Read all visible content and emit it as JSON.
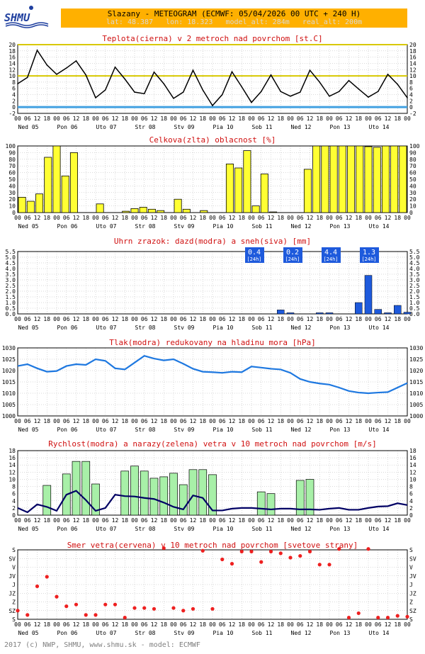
{
  "header": {
    "logo_text": "SHMU",
    "title": "Slazany - METEOGRAM (ECMWF: 05/04/2026 00 UTC + 240 H)",
    "subtitle": "lat: 48.387   lon: 18.323   model_alt: 284m   real_alt: 200m"
  },
  "footer": {
    "text": "2017 (c) NWP, SHMU, www.shmu.sk - model: ECMWF"
  },
  "time_axis": {
    "hour_labels": [
      "00",
      "06",
      "12",
      "18",
      "00",
      "06",
      "12",
      "18",
      "00",
      "06",
      "12",
      "18",
      "00",
      "06",
      "12",
      "18",
      "00",
      "06",
      "12",
      "18",
      "00",
      "06",
      "12",
      "18",
      "00",
      "06",
      "12",
      "18",
      "00",
      "06",
      "12",
      "18",
      "00",
      "06",
      "12",
      "18",
      "00",
      "06",
      "12",
      "18",
      "00"
    ],
    "day_labels": [
      "Ned 05",
      "Pon 06",
      "Uto 07",
      "Str 08",
      "Stv 09",
      "Pia 10",
      "Sob 11",
      "Ned 12",
      "Pon 13",
      "Uto 14"
    ]
  },
  "colors": {
    "yellow": "#ffff33",
    "yellow_line": "#d8c800",
    "blue_line": "#1e78e0",
    "precip_bar": "#1e5adc",
    "wind_bar": "#a8f0a8",
    "wind_line": "#000064",
    "direction_dot": "#ee2020",
    "title_red": "#d01010",
    "freezing_line": "#40a0e0"
  },
  "chart_data": [
    {
      "type": "line",
      "title": "Teplota(cierna) v 2 metroch nad povrchom [st.C]",
      "ylim": [
        -2,
        20
      ],
      "yticks": [
        "-2",
        "0",
        "2",
        "4",
        "6",
        "8",
        "10",
        "12",
        "14",
        "16",
        "18",
        "20"
      ],
      "reference_lines": [
        20,
        10,
        0
      ],
      "series": [
        {
          "values": [
            7.5,
            9.5,
            18.2,
            13.5,
            10.5,
            12.5,
            14.8,
            10.3,
            3.0,
            5.5,
            12.8,
            9.0,
            4.8,
            4.3,
            11.2,
            7.5,
            2.8,
            4.8,
            11.8,
            5.5,
            0.5,
            4.0,
            11.3,
            6.5,
            1.5,
            5.0,
            10.3,
            5.0,
            3.5,
            4.8,
            11.8,
            8.0,
            3.5,
            5.0,
            8.5,
            5.8,
            3.2,
            5.0,
            10.5,
            7.3,
            3.0
          ]
        }
      ]
    },
    {
      "type": "bar",
      "title": "Celkova(zlta) oblacnost [%]",
      "ylim": [
        0,
        100
      ],
      "yticks": [
        "0",
        "10",
        "20",
        "30",
        "40",
        "50",
        "60",
        "70",
        "80",
        "90",
        "100"
      ],
      "values": [
        23,
        17,
        28,
        83,
        100,
        55,
        90,
        0,
        0,
        13,
        0,
        0,
        2,
        6,
        8,
        5,
        3,
        0,
        20,
        5,
        0,
        3,
        0,
        0,
        73,
        67,
        93,
        10,
        58,
        1,
        0,
        0,
        0,
        65,
        100,
        100,
        100,
        100,
        100,
        100,
        99,
        98,
        100,
        100,
        100
      ]
    },
    {
      "type": "bar",
      "title": "Uhrn zrazok: dazd(modra) a sneh(siva) [mm]",
      "ylim": [
        0,
        5.5
      ],
      "yticks": [
        "0.0",
        "0.5",
        "1.0",
        "1.5",
        "2.0",
        "2.5",
        "3.0",
        "3.5",
        "4.0",
        "4.5",
        "5.0",
        "5.5"
      ],
      "values": [
        0,
        0,
        0,
        0,
        0,
        0,
        0,
        0,
        0,
        0,
        0,
        0,
        0,
        0,
        0,
        0,
        0,
        0,
        0,
        0,
        0,
        0,
        0,
        0,
        0,
        0,
        0,
        0.35,
        0.1,
        0,
        0,
        0.1,
        0.1,
        0,
        0,
        1.0,
        3.4,
        0.4,
        0.1,
        0.75,
        0.15
      ],
      "daily_totals": [
        {
          "value": "0.4",
          "unit": "[24h]"
        },
        {
          "value": "0.2",
          "unit": "[24h]"
        },
        {
          "value": "4.4",
          "unit": "[24h]"
        },
        {
          "value": "1.3",
          "unit": "[24h]"
        }
      ]
    },
    {
      "type": "line",
      "title": "Tlak(modra) redukovany na hladinu mora [hPa]",
      "ylim": [
        1000,
        1030
      ],
      "yticks": [
        "1000",
        "1005",
        "1010",
        "1015",
        "1020",
        "1025",
        "1030"
      ],
      "series": [
        {
          "values": [
            1022.0,
            1022.8,
            1021.0,
            1019.5,
            1019.8,
            1022.0,
            1022.8,
            1022.5,
            1025.0,
            1024.3,
            1021.0,
            1020.5,
            1023.5,
            1026.5,
            1025.3,
            1024.5,
            1025.0,
            1023.0,
            1020.8,
            1019.5,
            1019.3,
            1019.0,
            1019.5,
            1019.3,
            1021.8,
            1021.3,
            1020.8,
            1020.5,
            1019.0,
            1016.3,
            1015.0,
            1014.3,
            1013.8,
            1012.5,
            1011.0,
            1010.3,
            1010.0,
            1010.3,
            1010.5,
            1012.5,
            1014.5
          ]
        }
      ]
    },
    {
      "type": "bar",
      "title": "Rychlost(modra) a narazy(zelena) vetra v 10 metroch nad povrchom [m/s]",
      "ylim": [
        0,
        18
      ],
      "yticks": [
        "0",
        "2",
        "4",
        "6",
        "8",
        "10",
        "12",
        "14",
        "16",
        "18"
      ],
      "series": [
        {
          "values": [
            0,
            0,
            0,
            8.3,
            0,
            11.5,
            15.0,
            15.0,
            8.7,
            0,
            0,
            12.3,
            13.7,
            12.3,
            10.3,
            10.7,
            11.7,
            8.5,
            12.7,
            12.7,
            11.3,
            0,
            0,
            0,
            0,
            6.5,
            6.0,
            0,
            0,
            9.7,
            10.0,
            0,
            0,
            0,
            0,
            0,
            0,
            0,
            0,
            0,
            0
          ]
        },
        {
          "values": [
            2.0,
            0.8,
            3.0,
            2.3,
            1.2,
            5.7,
            6.8,
            4.2,
            1.2,
            2.0,
            5.7,
            5.3,
            5.2,
            4.8,
            4.5,
            3.5,
            2.3,
            1.6,
            5.5,
            4.8,
            1.3,
            1.3,
            1.8,
            2.0,
            2.0,
            1.8,
            1.6,
            1.8,
            1.8,
            1.6,
            1.6,
            1.5,
            1.8,
            2.0,
            1.5,
            1.5,
            2.0,
            2.4,
            2.5,
            3.3,
            2.8
          ]
        }
      ]
    },
    {
      "type": "scatter",
      "title": "Smer vetra(cervena) v 10 metroch nad povrchom [svetove strany]",
      "yticks": [
        "S",
        "SZ",
        "Z",
        "JZ",
        "J",
        "JV",
        "V",
        "SV",
        "S"
      ],
      "values": [
        1.0,
        0.5,
        3.8,
        4.9,
        2.6,
        1.5,
        1.7,
        0.5,
        0.5,
        1.7,
        1.7,
        0.2,
        1.3,
        1.3,
        1.2,
        8.2,
        1.3,
        1.0,
        1.2,
        7.9,
        1.2,
        6.9,
        6.4,
        7.8,
        7.8,
        6.6,
        7.8,
        7.6,
        7.1,
        7.3,
        7.8,
        6.3,
        6.3,
        8.1,
        0.2,
        0.7,
        8.1,
        0.2,
        0.2,
        0.4,
        0.3
      ]
    }
  ]
}
